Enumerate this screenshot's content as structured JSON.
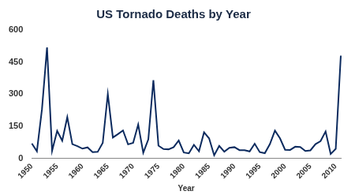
{
  "chart_data": {
    "type": "line",
    "title": "US Tornado Deaths by Year",
    "xlabel": "Year",
    "categories": [
      "1950",
      null,
      null,
      null,
      null,
      "1955",
      null,
      null,
      null,
      null,
      "1960",
      null,
      null,
      null,
      null,
      "1965",
      null,
      null,
      null,
      null,
      "1970",
      null,
      null,
      null,
      null,
      "1975",
      null,
      null,
      null,
      null,
      "1980",
      null,
      null,
      null,
      null,
      "1985",
      null,
      null,
      null,
      null,
      "1990",
      null,
      null,
      null,
      null,
      "1995",
      null,
      null,
      null,
      null,
      "2000",
      null,
      null,
      null,
      null,
      "2005",
      null,
      null,
      null,
      null,
      "2010",
      null
    ],
    "values": [
      70,
      34,
      230,
      519,
      36,
      129,
      83,
      193,
      67,
      58,
      46,
      52,
      30,
      31,
      73,
      301,
      98,
      114,
      131,
      66,
      73,
      159,
      27,
      89,
      366,
      60,
      44,
      43,
      53,
      84,
      28,
      24,
      64,
      34,
      122,
      94,
      15,
      59,
      32,
      50,
      53,
      39,
      39,
      33,
      69,
      30,
      25,
      67,
      130,
      94,
      41,
      40,
      55,
      54,
      35,
      38,
      67,
      81,
      126,
      21,
      45,
      480
    ],
    "color": "#0b2a5e",
    "ylim": [
      0,
      600
    ],
    "yticks": [
      0,
      150,
      300,
      450,
      600
    ],
    "grid": false
  }
}
